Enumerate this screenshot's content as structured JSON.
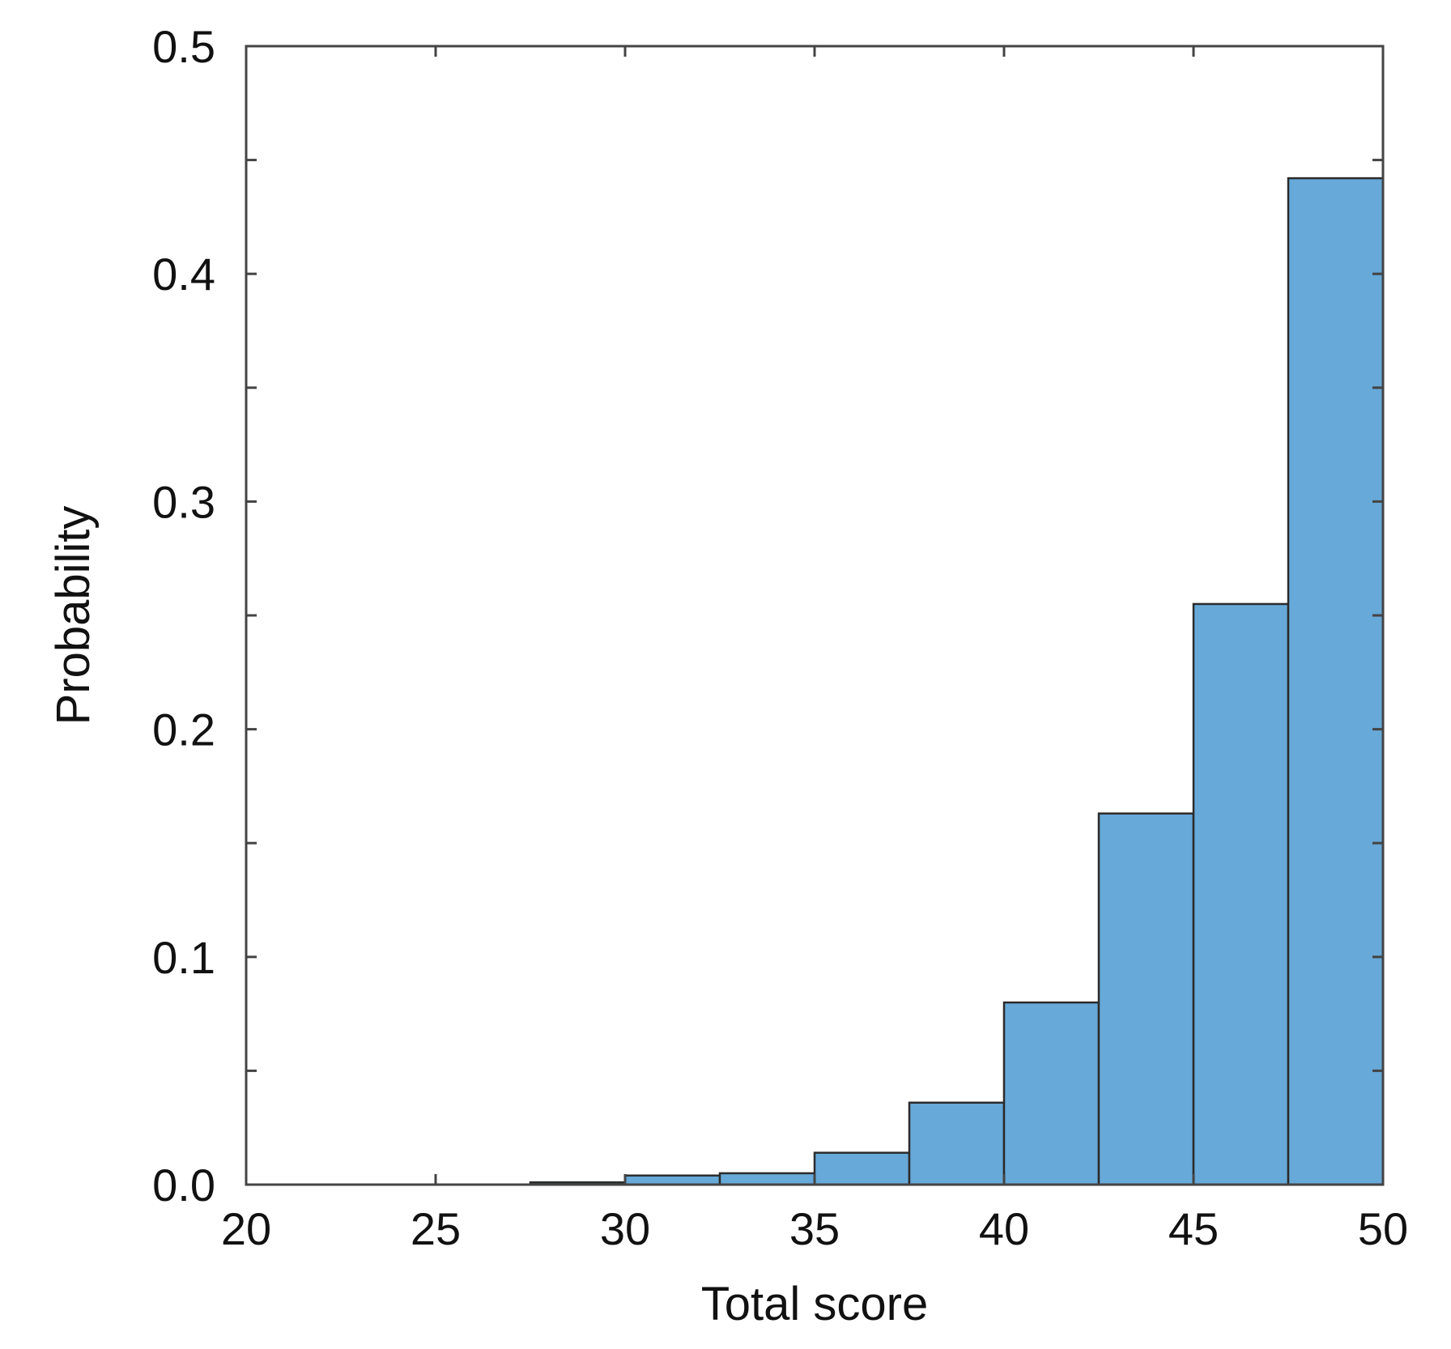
{
  "chart_data": {
    "type": "bar",
    "histogram": true,
    "xlabel": "Total score",
    "ylabel": "Probability",
    "xlim": [
      20,
      50
    ],
    "ylim": [
      0,
      0.5
    ],
    "xticks": [
      20,
      25,
      30,
      35,
      40,
      45,
      50
    ],
    "xtick_labels": [
      "20",
      "25",
      "30",
      "35",
      "40",
      "45",
      "50"
    ],
    "yticks": [
      0,
      0.1,
      0.2,
      0.3,
      0.4,
      0.5
    ],
    "ytick_labels": [
      "0.0",
      "0.1",
      "0.2",
      "0.3",
      "0.4",
      "0.5"
    ],
    "yticks_minor": [
      0.05,
      0.15,
      0.25,
      0.35,
      0.45
    ],
    "bin_edges": [
      20,
      22.5,
      25,
      27.5,
      30,
      32.5,
      35,
      37.5,
      40,
      42.5,
      45,
      47.5,
      50
    ],
    "values": [
      0,
      0,
      0,
      0.001,
      0.004,
      0.005,
      0.014,
      0.036,
      0.08,
      0.163,
      0.255,
      0.442
    ],
    "grid": false,
    "colors": {
      "bar_fill": "#67a9d8",
      "bar_edge": "#2b2b2b",
      "axes": "#444444"
    }
  }
}
